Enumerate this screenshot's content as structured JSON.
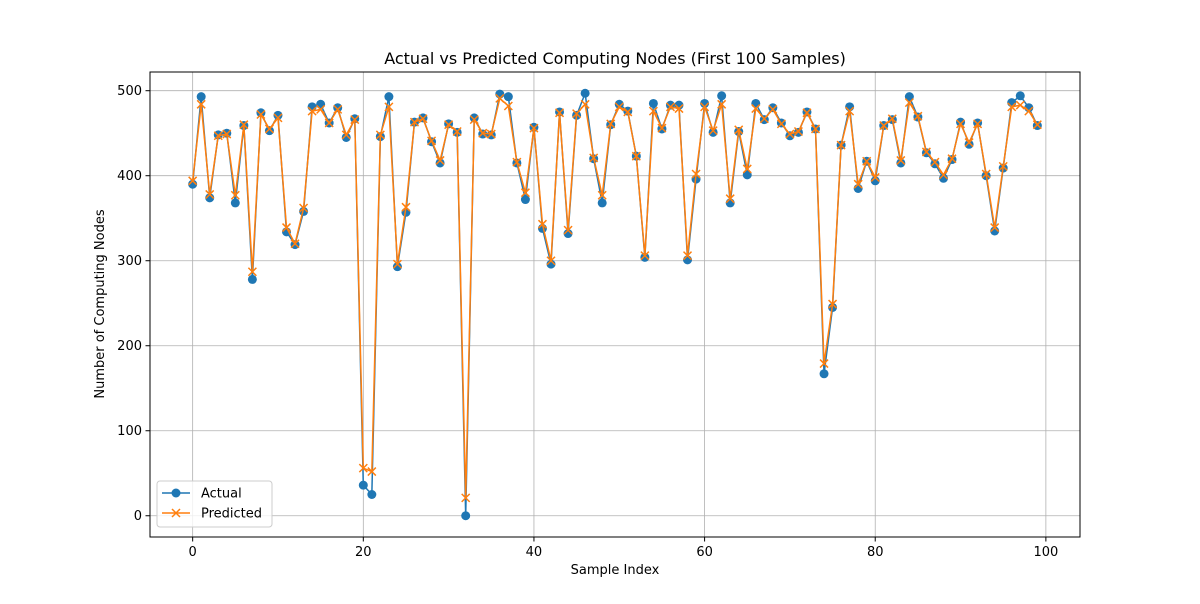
{
  "chart_data": {
    "type": "line",
    "title": "Actual vs Predicted Computing Nodes (First 100 Samples)",
    "xlabel": "Sample Index",
    "ylabel": "Number of Computing Nodes",
    "xlim": [
      -5,
      104
    ],
    "ylim": [
      -25,
      522
    ],
    "xticks": [
      0,
      20,
      40,
      60,
      80,
      100
    ],
    "yticks": [
      0,
      100,
      200,
      300,
      400,
      500
    ],
    "grid": true,
    "legend_position": "lower-left",
    "series": [
      {
        "name": "Actual",
        "color": "#1f77b4",
        "marker": "circle",
        "values": [
          390,
          493,
          374,
          448,
          450,
          368,
          459,
          278,
          474,
          453,
          471,
          334,
          319,
          358,
          481,
          484,
          462,
          480,
          445,
          467,
          36,
          25,
          446,
          493,
          293,
          357,
          463,
          468,
          440,
          415,
          461,
          451,
          0,
          468,
          449,
          448,
          496,
          493,
          415,
          372,
          457,
          338,
          296,
          475,
          332,
          471,
          497,
          420,
          368,
          460,
          484,
          476,
          423,
          304,
          485,
          455,
          483,
          483,
          301,
          396,
          485,
          451,
          494,
          368,
          452,
          401,
          485,
          466,
          480,
          462,
          447,
          451,
          475,
          455,
          167,
          245,
          436,
          481,
          385,
          417,
          394,
          459,
          466,
          415,
          493,
          469,
          427,
          414,
          397,
          419,
          463,
          437,
          462,
          400,
          335,
          409,
          486,
          494,
          480,
          459
        ]
      },
      {
        "name": "Predicted",
        "color": "#ff7f0e",
        "marker": "x",
        "values": [
          394,
          484,
          378,
          447,
          449,
          377,
          460,
          287,
          472,
          455,
          468,
          339,
          320,
          362,
          476,
          478,
          462,
          478,
          448,
          466,
          56,
          52,
          448,
          481,
          296,
          363,
          463,
          467,
          441,
          418,
          460,
          452,
          21,
          466,
          450,
          449,
          491,
          482,
          416,
          380,
          456,
          343,
          300,
          474,
          336,
          473,
          484,
          421,
          377,
          461,
          481,
          475,
          423,
          306,
          476,
          456,
          481,
          479,
          306,
          402,
          481,
          453,
          484,
          373,
          454,
          408,
          479,
          467,
          478,
          461,
          449,
          452,
          474,
          455,
          179,
          249,
          436,
          476,
          390,
          417,
          398,
          459,
          467,
          418,
          486,
          470,
          428,
          416,
          401,
          420,
          461,
          439,
          461,
          402,
          339,
          411,
          481,
          483,
          476,
          460
        ]
      }
    ]
  }
}
